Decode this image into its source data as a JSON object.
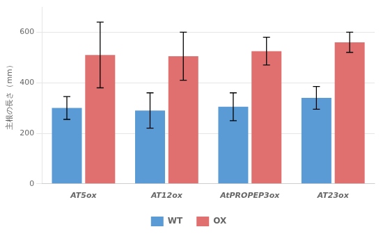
{
  "chart_data": {
    "type": "bar",
    "categories": [
      "AT5ox",
      "AT12ox",
      "AtPROPEP3ox",
      "AT23ox"
    ],
    "series": [
      {
        "name": "WT",
        "color": "#5B9BD5",
        "values": [
          300,
          290,
          305,
          340
        ],
        "errors": [
          45,
          70,
          55,
          45
        ]
      },
      {
        "name": "OX",
        "color": "#E07070",
        "values": [
          510,
          505,
          525,
          560
        ],
        "errors": [
          130,
          95,
          55,
          40
        ]
      }
    ],
    "ylabel": "主根の長さ（mm）",
    "ylim": [
      0,
      700
    ],
    "yticks": [
      0,
      200,
      400,
      600
    ],
    "grid": true,
    "legend": "bottom"
  }
}
